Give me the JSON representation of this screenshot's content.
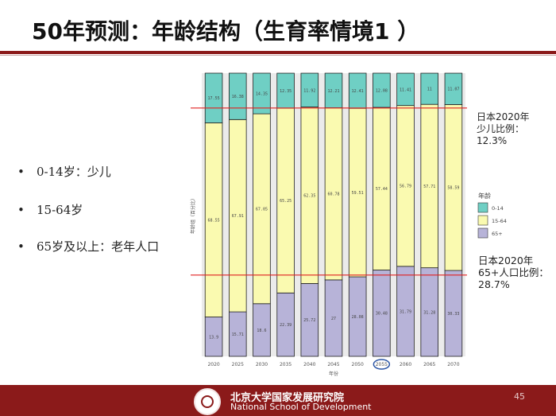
{
  "slide": {
    "title": "50年预测：年龄结构（生育率情境1 ）",
    "page_number": "45",
    "footer_cn": "北京大学国家发展研究院",
    "footer_en": "National School of Development"
  },
  "bullets": [
    "0-14岁：少儿",
    "15-64岁",
    "65岁及以上：老年人口"
  ],
  "annotations": {
    "child_note": [
      "日本2020年",
      "少儿比例：",
      "12.3%"
    ],
    "elderly_note": [
      "日本2020年",
      "65+人口比例：",
      "28.7%"
    ]
  },
  "chart_data": {
    "type": "bar",
    "stacked": true,
    "categories": [
      "2020",
      "2025",
      "2030",
      "2035",
      "2040",
      "2045",
      "2050",
      "2055",
      "2060",
      "2065",
      "2070"
    ],
    "series": [
      {
        "name": "0-14",
        "color": "#6fcfc4",
        "values": [
          17.55,
          16.38,
          14.35,
          12.35,
          11.92,
          12.21,
          12.41,
          12.08,
          11.41,
          11,
          11.07
        ],
        "labels": [
          "17.55",
          "16.38",
          "14.35",
          "12.35",
          "11.92",
          "12.21",
          "12.41",
          "12.08",
          "11.41",
          "11",
          "11.07"
        ]
      },
      {
        "name": "15-64",
        "color": "#fafab0",
        "values": [
          68.55,
          67.91,
          67.05,
          65.25,
          62.35,
          60.78,
          59.51,
          57.44,
          56.79,
          57.71,
          58.59
        ],
        "labels": [
          "68.55",
          "67.91",
          "67.05",
          "65.25",
          "62.35",
          "60.78",
          "59.51",
          "57.44",
          "56.79",
          "57.71",
          "58.59"
        ]
      },
      {
        "name": "65+",
        "color": "#b7b3d8",
        "values": [
          13.9,
          15.71,
          18.6,
          22.39,
          25.72,
          27,
          28.08,
          30.48,
          31.79,
          31.28,
          30.33
        ],
        "labels": [
          "13.9",
          "15.71",
          "18.6",
          "22.39",
          "25.72",
          "27",
          "28.08",
          "30.48",
          "31.79",
          "31.28",
          "30.33"
        ]
      }
    ],
    "xlabel": "年份",
    "ylabel": "年龄组（百分比）",
    "ylim": [
      0,
      100
    ],
    "legend_title": "年龄",
    "legend_position": "right",
    "reference_lines": [
      {
        "value": 87.7,
        "color": "#e02020"
      },
      {
        "value": 28.7,
        "color": "#e02020"
      }
    ],
    "highlighted_category": "2055",
    "panel_background": "#ebebeb",
    "grid": true
  }
}
